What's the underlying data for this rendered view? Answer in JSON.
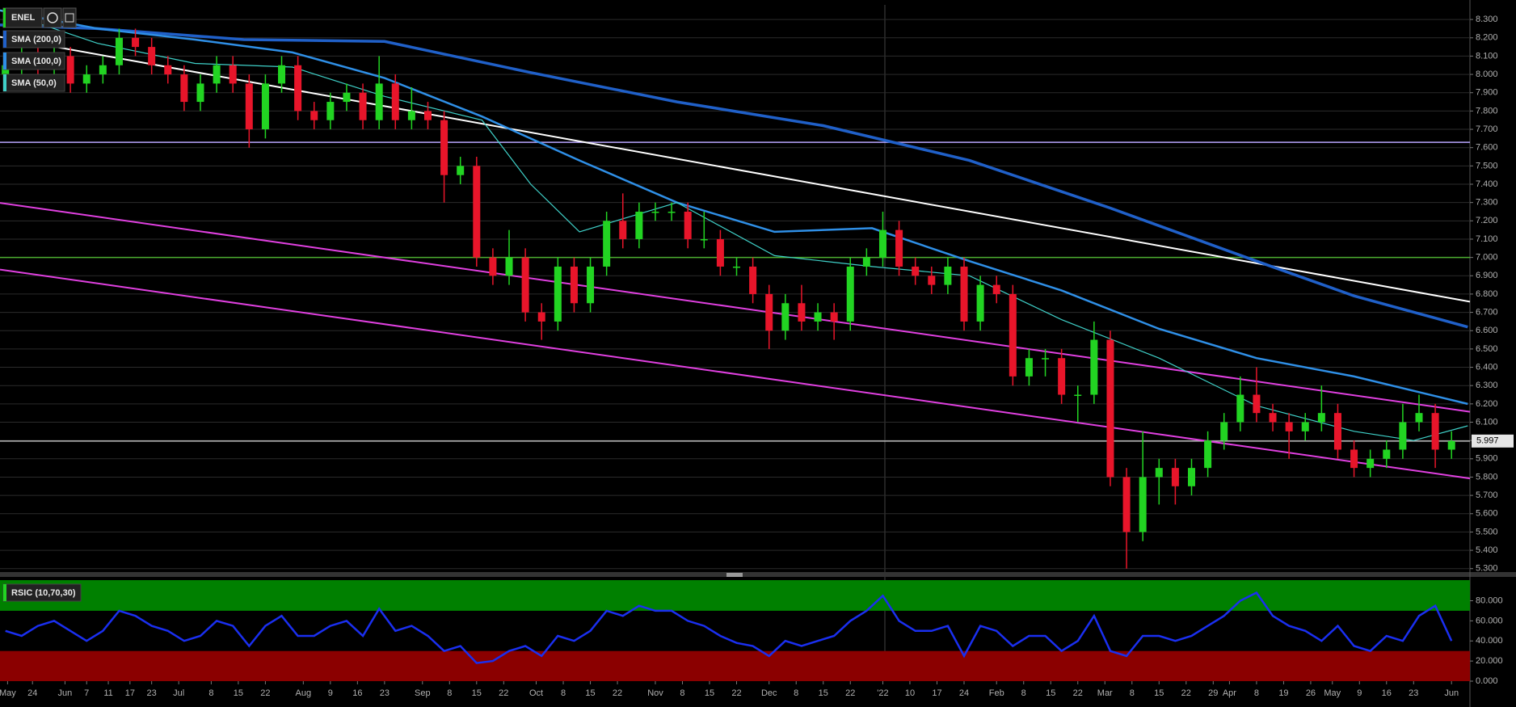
{
  "chart_data": [
    {
      "type": "candlestick",
      "title": "ENEL",
      "grid": true,
      "xlim": [
        0,
        271.4
      ],
      "ylim": [
        5.29,
        8.38
      ],
      "up_color": "#22d422",
      "down_color": "#e8152a",
      "x": [
        1,
        4,
        7,
        10,
        13,
        16,
        19,
        22,
        25,
        28,
        31,
        34,
        37,
        40,
        43,
        46,
        49,
        52,
        55,
        58,
        61,
        64,
        67,
        70,
        73,
        76,
        79,
        82,
        85,
        88,
        91,
        94,
        97,
        100,
        103,
        106,
        109,
        112,
        115,
        118,
        121,
        124,
        127,
        130,
        133,
        136,
        139,
        142,
        145,
        148,
        151,
        154,
        157,
        160,
        163,
        166,
        169,
        172,
        175,
        178,
        181,
        184,
        187,
        190,
        193,
        196,
        199,
        202,
        205,
        208,
        211,
        214,
        217,
        220,
        223,
        226,
        229,
        232,
        235,
        238,
        241,
        244,
        247,
        250,
        253,
        256,
        259,
        262,
        265,
        268
      ],
      "open": [
        8.0,
        8.05,
        8.1,
        8.05,
        8.1,
        7.95,
        8.0,
        8.05,
        8.2,
        8.15,
        8.05,
        8.0,
        7.85,
        7.95,
        8.05,
        7.95,
        7.7,
        7.95,
        8.05,
        7.8,
        7.75,
        7.85,
        7.9,
        7.75,
        7.95,
        7.75,
        7.8,
        7.75,
        7.45,
        7.5,
        7.0,
        6.9,
        7.0,
        6.7,
        6.65,
        6.95,
        6.75,
        6.95,
        7.2,
        7.1,
        7.25,
        7.25,
        7.25,
        7.1,
        7.1,
        6.95,
        6.95,
        6.8,
        6.6,
        6.75,
        6.65,
        6.7,
        6.65,
        6.95,
        7.0,
        7.15,
        6.95,
        6.9,
        6.85,
        6.95,
        6.65,
        6.85,
        6.8,
        6.35,
        6.45,
        6.45,
        6.25,
        6.25,
        6.55,
        5.8,
        5.5,
        5.8,
        5.85,
        5.75,
        5.85,
        6.0,
        6.1,
        6.25,
        6.15,
        6.1,
        6.05,
        6.1,
        6.15,
        5.95,
        5.85,
        5.9,
        5.95,
        6.1,
        6.15,
        5.95
      ],
      "high": [
        8.1,
        8.15,
        8.15,
        8.15,
        8.15,
        8.05,
        8.1,
        8.25,
        8.25,
        8.2,
        8.1,
        8.05,
        8.0,
        8.1,
        8.1,
        8.0,
        8.0,
        8.1,
        8.1,
        7.85,
        7.9,
        7.95,
        7.95,
        8.1,
        8.0,
        7.93,
        7.85,
        7.8,
        7.55,
        7.55,
        7.05,
        7.15,
        7.05,
        6.75,
        7.0,
        7.0,
        7.0,
        7.25,
        7.35,
        7.3,
        7.3,
        7.3,
        7.3,
        7.25,
        7.15,
        7.0,
        7.0,
        6.85,
        6.8,
        6.85,
        6.75,
        6.75,
        7.0,
        7.05,
        7.25,
        7.2,
        7.0,
        6.95,
        7.0,
        7.0,
        6.9,
        6.9,
        6.85,
        6.5,
        6.5,
        6.5,
        6.3,
        6.65,
        6.6,
        5.85,
        6.05,
        5.9,
        5.9,
        5.9,
        6.05,
        6.15,
        6.35,
        6.4,
        6.2,
        6.15,
        6.15,
        6.3,
        6.2,
        6.0,
        5.95,
        6.0,
        6.2,
        6.25,
        6.2,
        6.05
      ],
      "low": [
        7.95,
        8.0,
        8.0,
        8.0,
        7.9,
        7.9,
        7.95,
        8.0,
        8.1,
        8.0,
        7.95,
        7.8,
        7.8,
        7.9,
        7.9,
        7.6,
        7.65,
        7.9,
        7.75,
        7.7,
        7.7,
        7.8,
        7.7,
        7.7,
        7.7,
        7.7,
        7.7,
        7.3,
        7.4,
        6.95,
        6.85,
        6.85,
        6.65,
        6.55,
        6.6,
        6.7,
        6.7,
        6.9,
        7.05,
        7.05,
        7.2,
        7.2,
        7.05,
        7.05,
        6.9,
        6.9,
        6.75,
        6.5,
        6.55,
        6.6,
        6.6,
        6.55,
        6.6,
        6.9,
        6.95,
        6.9,
        6.85,
        6.8,
        6.8,
        6.6,
        6.6,
        6.75,
        6.3,
        6.3,
        6.35,
        6.2,
        6.1,
        6.2,
        5.75,
        5.3,
        5.45,
        5.65,
        5.65,
        5.7,
        5.8,
        5.95,
        6.05,
        6.1,
        6.05,
        5.9,
        6.0,
        6.05,
        5.9,
        5.8,
        5.8,
        5.85,
        5.9,
        6.05,
        5.85,
        5.9
      ],
      "close": [
        8.05,
        8.1,
        8.05,
        8.1,
        7.95,
        8.0,
        8.05,
        8.2,
        8.15,
        8.05,
        8.0,
        7.85,
        7.95,
        8.05,
        7.95,
        7.7,
        7.95,
        8.05,
        7.8,
        7.75,
        7.85,
        7.9,
        7.75,
        7.95,
        7.75,
        7.8,
        7.75,
        7.45,
        7.5,
        7.0,
        6.9,
        7.0,
        6.7,
        6.65,
        6.95,
        6.75,
        6.95,
        7.2,
        7.1,
        7.25,
        7.25,
        7.25,
        7.1,
        7.1,
        6.95,
        6.95,
        6.8,
        6.6,
        6.75,
        6.65,
        6.7,
        6.65,
        6.95,
        7.0,
        7.15,
        6.95,
        6.9,
        6.85,
        6.95,
        6.65,
        6.85,
        6.8,
        6.35,
        6.45,
        6.45,
        6.25,
        6.25,
        6.55,
        5.8,
        5.5,
        5.8,
        5.85,
        5.75,
        5.85,
        6.0,
        6.1,
        6.25,
        6.15,
        6.1,
        6.05,
        6.1,
        6.15,
        5.95,
        5.85,
        5.9,
        5.95,
        6.1,
        6.15,
        5.95,
        5.997
      ],
      "series": [
        {
          "name": "SMA (200,0)",
          "color": "#2060c8",
          "x": [
            0,
            18,
            45,
            71,
            98,
            125,
            152,
            179,
            205,
            232,
            250,
            271
          ],
          "values": [
            8.27,
            8.25,
            8.19,
            8.18,
            8.01,
            7.85,
            7.72,
            7.53,
            7.27,
            6.98,
            6.79,
            6.62
          ]
        },
        {
          "name": "SMA (100,0)",
          "color": "#2f8fe6",
          "x": [
            0,
            18,
            36,
            54,
            71,
            89,
            107,
            125,
            143,
            161,
            179,
            196,
            214,
            232,
            250,
            271
          ],
          "values": [
            8.35,
            8.25,
            8.19,
            8.12,
            7.98,
            7.77,
            7.53,
            7.3,
            7.14,
            7.16,
            6.98,
            6.82,
            6.61,
            6.45,
            6.35,
            6.2
          ]
        },
        {
          "name": "SMA (50,0)",
          "color": "#3fd0c8",
          "x": [
            0,
            18,
            36,
            54,
            71,
            89,
            98,
            107,
            125,
            143,
            161,
            179,
            196,
            214,
            232,
            250,
            261,
            271
          ],
          "values": [
            8.35,
            8.17,
            8.06,
            8.04,
            7.88,
            7.75,
            7.4,
            7.14,
            7.3,
            7.01,
            6.95,
            6.9,
            6.66,
            6.45,
            6.19,
            6.05,
            6.0,
            6.08
          ]
        }
      ],
      "trendlines": [
        {
          "color": "#ffffff",
          "x": [
            0,
            271.4
          ],
          "values": [
            8.205,
            6.758
          ]
        },
        {
          "color": "#e040e0",
          "x": [
            0,
            271.4
          ],
          "values": [
            7.298,
            6.157
          ]
        },
        {
          "color": "#e040e0",
          "x": [
            0,
            271.4
          ],
          "values": [
            6.934,
            5.793
          ]
        }
      ],
      "hlines": [
        {
          "value": 7.629,
          "color": "#b9a6ff"
        },
        {
          "value": 7.0,
          "color": "#4caf30"
        },
        {
          "value": 5.997,
          "color": "#bbbbbb"
        }
      ],
      "last": 5.997,
      "yticks": [
        {
          "value": 5.3,
          "label": "5.300"
        },
        {
          "value": 5.4,
          "label": "5.400"
        },
        {
          "value": 5.5,
          "label": "5.500"
        },
        {
          "value": 5.6,
          "label": "5.600"
        },
        {
          "value": 5.7,
          "label": "5.700"
        },
        {
          "value": 5.8,
          "label": "5.800"
        },
        {
          "value": 5.9,
          "label": "5.900"
        },
        {
          "value": 6.0,
          "label": "6.000"
        },
        {
          "value": 6.1,
          "label": "6.100"
        },
        {
          "value": 6.2,
          "label": "6.200"
        },
        {
          "value": 6.3,
          "label": "6.300"
        },
        {
          "value": 6.4,
          "label": "6.400"
        },
        {
          "value": 6.5,
          "label": "6.500"
        },
        {
          "value": 6.6,
          "label": "6.600"
        },
        {
          "value": 6.7,
          "label": "6.700"
        },
        {
          "value": 6.8,
          "label": "6.800"
        },
        {
          "value": 6.9,
          "label": "6.900"
        },
        {
          "value": 7.0,
          "label": "7.000"
        },
        {
          "value": 7.1,
          "label": "7.100"
        },
        {
          "value": 7.2,
          "label": "7.200"
        },
        {
          "value": 7.3,
          "label": "7.300"
        },
        {
          "value": 7.4,
          "label": "7.400"
        },
        {
          "value": 7.5,
          "label": "7.500"
        },
        {
          "value": 7.6,
          "label": "7.600"
        },
        {
          "value": 7.7,
          "label": "7.700"
        },
        {
          "value": 7.8,
          "label": "7.800"
        },
        {
          "value": 7.9,
          "label": "7.900"
        },
        {
          "value": 8.0,
          "label": "8.000"
        },
        {
          "value": 8.1,
          "label": "8.100"
        },
        {
          "value": 8.2,
          "label": "8.200"
        },
        {
          "value": 8.3,
          "label": "8.300"
        }
      ]
    },
    {
      "type": "line",
      "xlim": [
        0,
        271.4
      ],
      "ylim": [
        0,
        100.5
      ],
      "x": [
        1,
        4,
        7,
        10,
        13,
        16,
        19,
        22,
        25,
        28,
        31,
        34,
        37,
        40,
        43,
        46,
        49,
        52,
        55,
        58,
        61,
        64,
        67,
        70,
        73,
        76,
        79,
        82,
        85,
        88,
        91,
        94,
        97,
        100,
        103,
        106,
        109,
        112,
        115,
        118,
        121,
        124,
        127,
        130,
        133,
        136,
        139,
        142,
        145,
        148,
        151,
        154,
        157,
        160,
        163,
        166,
        169,
        172,
        175,
        178,
        181,
        184,
        187,
        190,
        193,
        196,
        199,
        202,
        205,
        208,
        211,
        214,
        217,
        220,
        223,
        226,
        229,
        232,
        235,
        238,
        241,
        244,
        247,
        250,
        253,
        256,
        259,
        262,
        265,
        268
      ],
      "series": [
        {
          "name": "RSIC (10,70,30)",
          "color": "#1a2ff0",
          "values": [
            50,
            45,
            55,
            60,
            50,
            40,
            50,
            70,
            65,
            55,
            50,
            40,
            45,
            60,
            55,
            35,
            55,
            65,
            45,
            45,
            55,
            60,
            45,
            72,
            50,
            55,
            45,
            30,
            35,
            18,
            20,
            30,
            35,
            25,
            45,
            40,
            50,
            70,
            65,
            75,
            70,
            70,
            60,
            55,
            45,
            38,
            35,
            25,
            40,
            35,
            40,
            45,
            60,
            70,
            85,
            60,
            50,
            50,
            55,
            25,
            55,
            50,
            35,
            45,
            45,
            30,
            40,
            65,
            30,
            25,
            45,
            45,
            40,
            45,
            55,
            65,
            80,
            88,
            65,
            55,
            50,
            40,
            55,
            35,
            30,
            45,
            40,
            65,
            75,
            40
          ]
        }
      ],
      "bands": [
        {
          "from": 70,
          "to": 100.5,
          "color": "#008000"
        },
        {
          "from": 0,
          "to": 30,
          "color": "#8b0000"
        }
      ],
      "yticks": [
        {
          "value": 0,
          "label": "0.000"
        },
        {
          "value": 20,
          "label": "20.000"
        },
        {
          "value": 40,
          "label": "40.000"
        },
        {
          "value": 60,
          "label": "60.000"
        },
        {
          "value": 80,
          "label": "80.000"
        }
      ],
      "xticks": [
        {
          "value": 1.4,
          "label": "May"
        },
        {
          "value": 6,
          "label": "24"
        },
        {
          "value": 12,
          "label": "Jun"
        },
        {
          "value": 16,
          "label": "7"
        },
        {
          "value": 20,
          "label": "11"
        },
        {
          "value": 24,
          "label": "17"
        },
        {
          "value": 28,
          "label": "23"
        },
        {
          "value": 33,
          "label": "Jul"
        },
        {
          "value": 39,
          "label": "8"
        },
        {
          "value": 44,
          "label": "15"
        },
        {
          "value": 49,
          "label": "22"
        },
        {
          "value": 56,
          "label": "Aug"
        },
        {
          "value": 61,
          "label": "9"
        },
        {
          "value": 66,
          "label": "16"
        },
        {
          "value": 71,
          "label": "23"
        },
        {
          "value": 78,
          "label": "Sep"
        },
        {
          "value": 83,
          "label": "8"
        },
        {
          "value": 88,
          "label": "15"
        },
        {
          "value": 93,
          "label": "22"
        },
        {
          "value": 99,
          "label": "Oct"
        },
        {
          "value": 104,
          "label": "8"
        },
        {
          "value": 109,
          "label": "15"
        },
        {
          "value": 114,
          "label": "22"
        },
        {
          "value": 121,
          "label": "Nov"
        },
        {
          "value": 126,
          "label": "8"
        },
        {
          "value": 131,
          "label": "15"
        },
        {
          "value": 136,
          "label": "22"
        },
        {
          "value": 142,
          "label": "Dec"
        },
        {
          "value": 147,
          "label": "8"
        },
        {
          "value": 152,
          "label": "15"
        },
        {
          "value": 157,
          "label": "22"
        },
        {
          "value": 163,
          "label": "'22"
        },
        {
          "value": 168,
          "label": "10"
        },
        {
          "value": 173,
          "label": "17"
        },
        {
          "value": 178,
          "label": "24"
        },
        {
          "value": 184,
          "label": "Feb"
        },
        {
          "value": 189,
          "label": "8"
        },
        {
          "value": 194,
          "label": "15"
        },
        {
          "value": 199,
          "label": "22"
        },
        {
          "value": 204,
          "label": "Mar"
        },
        {
          "value": 209,
          "label": "8"
        },
        {
          "value": 214,
          "label": "15"
        },
        {
          "value": 219,
          "label": "22"
        },
        {
          "value": 224,
          "label": "29"
        },
        {
          "value": 227,
          "label": "Apr"
        },
        {
          "value": 232,
          "label": "8"
        },
        {
          "value": 237,
          "label": "19"
        },
        {
          "value": 242,
          "label": "26"
        },
        {
          "value": 246,
          "label": "May"
        },
        {
          "value": 251,
          "label": "9"
        },
        {
          "value": 256,
          "label": "16"
        },
        {
          "value": 261,
          "label": "23"
        },
        {
          "value": 268,
          "label": "Jun"
        }
      ]
    }
  ]
}
